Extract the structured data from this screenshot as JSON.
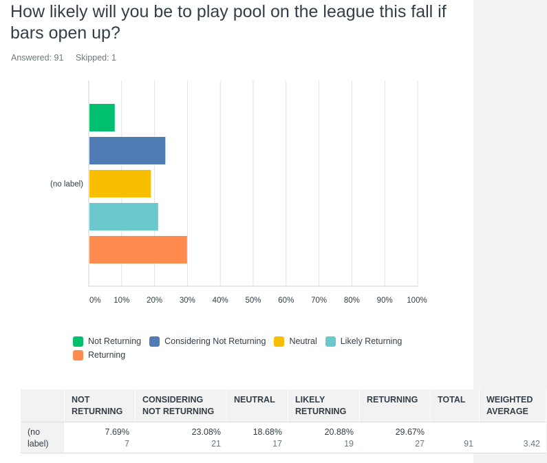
{
  "question": {
    "title": "How likely will you be to play pool on the league this fall if bars open up?",
    "answered": "Answered: 91",
    "skipped": "Skipped: 1"
  },
  "colors": {
    "not_returning": "#00bf6f",
    "considering_not_returning": "#507cb6",
    "neutral": "#f9be00",
    "likely_returning": "#6bc8cd",
    "returning": "#ff8b4f"
  },
  "chart_data": {
    "type": "bar",
    "orientation": "horizontal",
    "categories": [
      "(no label)"
    ],
    "series": [
      {
        "name": "Not Returning",
        "values": [
          7.69
        ]
      },
      {
        "name": "Considering Not Returning",
        "values": [
          23.08
        ]
      },
      {
        "name": "Neutral",
        "values": [
          18.68
        ]
      },
      {
        "name": "Likely Returning",
        "values": [
          20.88
        ]
      },
      {
        "name": "Returning",
        "values": [
          29.67
        ]
      }
    ],
    "xlim": [
      0,
      100
    ],
    "x_ticks": [
      "0%",
      "10%",
      "20%",
      "30%",
      "40%",
      "50%",
      "60%",
      "70%",
      "80%",
      "90%",
      "100%"
    ],
    "grid": true,
    "legend": "bottom"
  },
  "legend": [
    {
      "label": "Not Returning",
      "color": "#00bf6f"
    },
    {
      "label": "Considering Not Returning",
      "color": "#507cb6"
    },
    {
      "label": "Neutral",
      "color": "#f9be00"
    },
    {
      "label": "Likely Returning",
      "color": "#6bc8cd"
    },
    {
      "label": "Returning",
      "color": "#ff8b4f"
    }
  ],
  "table": {
    "headers": {
      "not_returning": [
        "NOT",
        "RETURNING"
      ],
      "considering": [
        "CONSIDERING",
        "NOT RETURNING"
      ],
      "neutral": [
        "NEUTRAL"
      ],
      "likely": [
        "LIKELY",
        "RETURNING"
      ],
      "returning": [
        "RETURNING"
      ],
      "total": [
        "TOTAL"
      ],
      "weighted": [
        "WEIGHTED",
        "AVERAGE"
      ]
    },
    "row": {
      "label": [
        "(no",
        "label)"
      ],
      "not_returning": {
        "pct": "7.69%",
        "count": "7"
      },
      "considering": {
        "pct": "23.08%",
        "count": "21"
      },
      "neutral": {
        "pct": "18.68%",
        "count": "17"
      },
      "likely": {
        "pct": "20.88%",
        "count": "19"
      },
      "returning": {
        "pct": "29.67%",
        "count": "27"
      },
      "total": "91",
      "weighted": "3.42"
    }
  }
}
